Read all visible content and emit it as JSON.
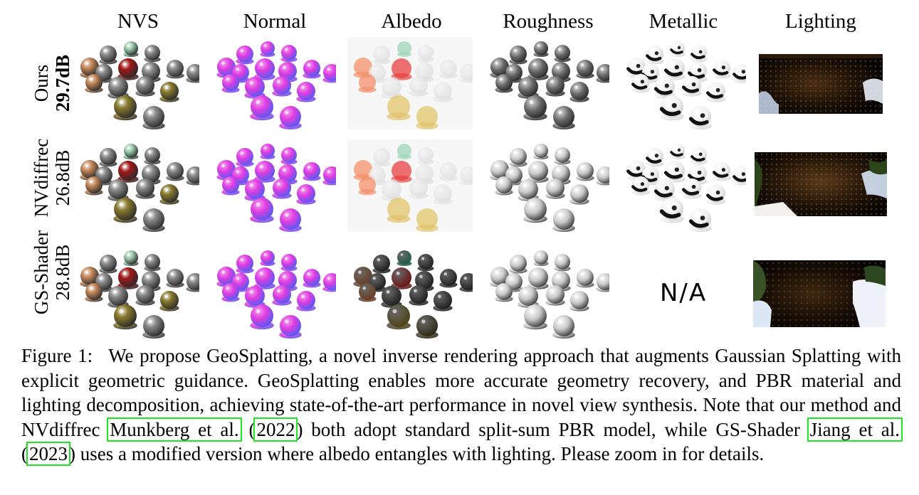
{
  "figure": {
    "columns": [
      "NVS",
      "Normal",
      "Albedo",
      "Roughness",
      "Metallic",
      "Lighting"
    ],
    "rows": [
      {
        "method": "Ours",
        "psnr": "29.7dB"
      },
      {
        "method": "NVdiffrec",
        "psnr": "26.8dB"
      },
      {
        "method": "GS-Shader",
        "psnr": "28.8dB"
      }
    ],
    "not_available": "N/A",
    "colors": {
      "citation_box": "#1ee81e",
      "normal_magenta": "#e03ce0",
      "normal_blue": "#4d5cf2",
      "albedo_red": "#e84040",
      "albedo_orange": "#f4906a",
      "albedo_gold": "#e0c46a",
      "albedo_teal": "#9fd6b6"
    }
  },
  "caption": {
    "label": "Figure 1:",
    "part1": "We propose GeoSplatting, a novel inverse rendering approach that augments Gaussian Splatting with explicit geometric guidance. GeoSplatting enables more accurate geometry recovery, and PBR material and lighting decomposition, achieving state-of-the-art performance in novel view synthesis. Note that our method and NVdiffrec ",
    "cite1_authors": "Munkberg et al.",
    "cite1_open": " (",
    "cite1_year": "2022",
    "cite1_close": ")",
    "part2": " both adopt standard split-sum PBR model, while GS-Shader ",
    "cite2_authors": "Jiang et al.",
    "cite2_open": " (",
    "cite2_year": "2023",
    "cite2_close": ")",
    "part3": " uses a modified version where albedo entangles with lighting. Please zoom in for details."
  }
}
